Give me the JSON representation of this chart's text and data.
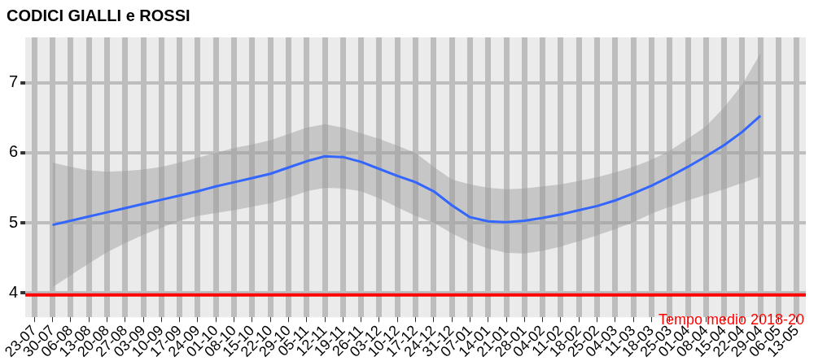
{
  "chart_data": {
    "type": "line",
    "title": "CODICI GIALLI e ROSSI",
    "categories": [
      "23-07",
      "30-07",
      "06-08",
      "13-08",
      "20-08",
      "27-08",
      "03-09",
      "10-09",
      "17-09",
      "24-09",
      "01-10",
      "08-10",
      "15-10",
      "22-10",
      "29-10",
      "05-11",
      "12-11",
      "19-11",
      "26-11",
      "03-12",
      "10-12",
      "17-12",
      "24-12",
      "31-12",
      "07-01",
      "14-01",
      "21-01",
      "28-01",
      "04-02",
      "11-02",
      "18-02",
      "25-02",
      "04-03",
      "11-03",
      "18-03",
      "25-03",
      "01-04",
      "08-04",
      "15-04",
      "22-04",
      "29-04",
      "06-05",
      "13-05"
    ],
    "series": [
      {
        "color": "#3366ff",
        "values": [
          null,
          4.97,
          5.03,
          5.09,
          5.15,
          5.21,
          5.27,
          5.33,
          5.39,
          5.45,
          5.52,
          5.58,
          5.64,
          5.7,
          5.79,
          5.88,
          5.95,
          5.94,
          5.87,
          5.77,
          5.67,
          5.58,
          5.45,
          5.25,
          5.08,
          5.02,
          5.01,
          5.03,
          5.07,
          5.12,
          5.18,
          5.24,
          5.32,
          5.42,
          5.53,
          5.66,
          5.8,
          5.95,
          6.11,
          6.3,
          6.53,
          null,
          null
        ],
        "lower": [
          null,
          4.08,
          4.25,
          4.42,
          4.58,
          4.71,
          4.83,
          4.93,
          5.03,
          5.1,
          5.14,
          5.18,
          5.23,
          5.28,
          5.36,
          5.45,
          5.5,
          5.49,
          5.45,
          5.35,
          5.22,
          5.1,
          5.0,
          4.85,
          4.72,
          4.63,
          4.57,
          4.56,
          4.6,
          4.66,
          4.74,
          4.82,
          4.91,
          5.01,
          5.13,
          5.23,
          5.32,
          5.4,
          5.48,
          5.57,
          5.66,
          null,
          null
        ],
        "upper": [
          null,
          5.86,
          5.8,
          5.75,
          5.73,
          5.74,
          5.76,
          5.8,
          5.86,
          5.93,
          6.0,
          6.07,
          6.12,
          6.18,
          6.27,
          6.36,
          6.41,
          6.36,
          6.28,
          6.2,
          6.1,
          6.0,
          5.8,
          5.62,
          5.55,
          5.5,
          5.48,
          5.49,
          5.52,
          5.55,
          5.6,
          5.65,
          5.72,
          5.8,
          5.9,
          6.03,
          6.2,
          6.38,
          6.65,
          6.98,
          7.42,
          null,
          null
        ]
      }
    ],
    "ylim": [
      3.65,
      7.65
    ],
    "yticks": [
      4,
      5,
      6,
      7
    ],
    "ref_lines": [
      {
        "axis": "y",
        "value": 3.97,
        "label": "Tempo medio 2018-20",
        "color": "#ff0000"
      }
    ],
    "grid": true,
    "legend": false
  }
}
